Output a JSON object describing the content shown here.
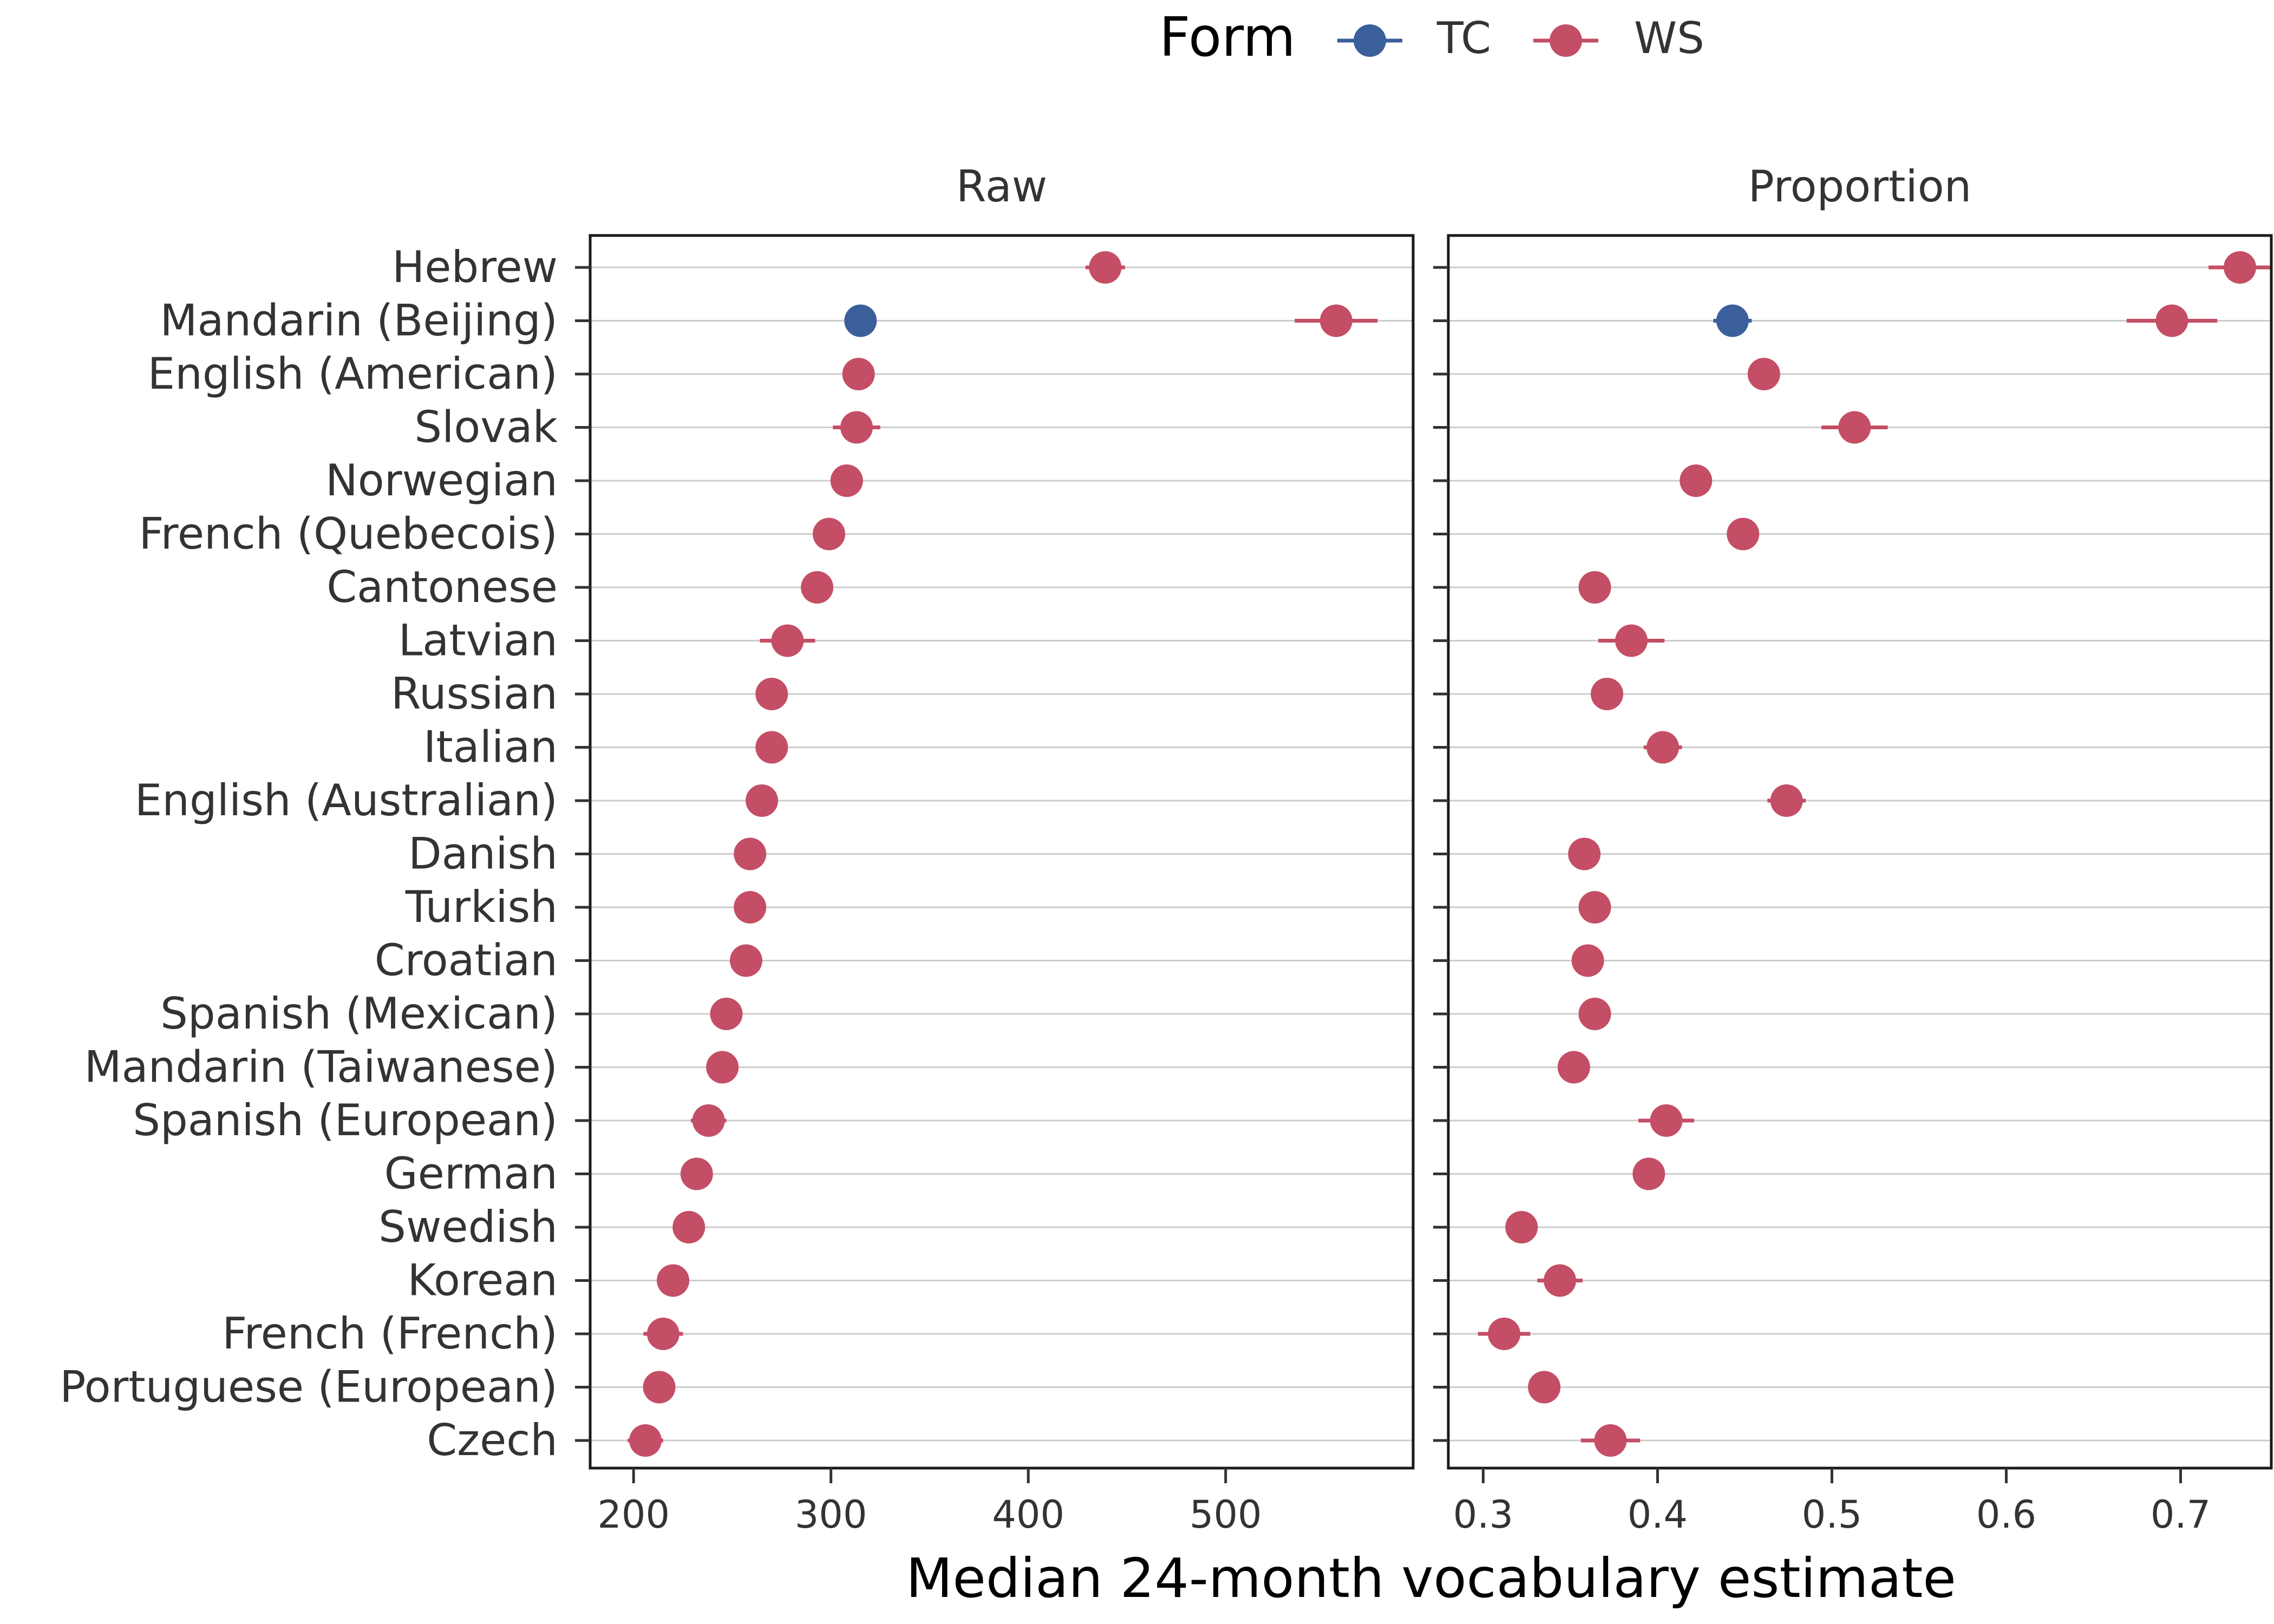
{
  "chart_data": {
    "type": "scatter",
    "subtype": "dot plot with error bars, faceted",
    "xlabel": "Median 24-month vocabulary estimate",
    "ylabel": "",
    "legend": {
      "title": "Form",
      "placement": "top-center",
      "entries": [
        {
          "key": "TC",
          "label": "TC",
          "color": "#3a5f9a"
        },
        {
          "key": "WS",
          "label": "WS",
          "color": "#c44e65"
        }
      ]
    },
    "categories": [
      "Hebrew",
      "Mandarin (Beijing)",
      "English (American)",
      "Slovak",
      "Norwegian",
      "French (Quebecois)",
      "Cantonese",
      "Latvian",
      "Russian",
      "Italian",
      "English (Australian)",
      "Danish",
      "Turkish",
      "Croatian",
      "Spanish (Mexican)",
      "Mandarin (Taiwanese)",
      "Spanish (European)",
      "German",
      "Swedish",
      "Korean",
      "French (French)",
      "Portuguese (European)",
      "Czech"
    ],
    "grid": {
      "horizontal": true,
      "vertical": false
    },
    "facets": [
      {
        "title": "Raw",
        "xlim": [
          178,
          595
        ],
        "xticks": [
          200,
          300,
          400,
          500
        ],
        "xtick_labels": [
          "200",
          "300",
          "400",
          "500"
        ],
        "points": [
          {
            "category": "Hebrew",
            "form": "WS",
            "value": 439,
            "lo": 429,
            "hi": 449
          },
          {
            "category": "Mandarin (Beijing)",
            "form": "WS",
            "value": 556,
            "lo": 535,
            "hi": 577
          },
          {
            "category": "Mandarin (Beijing)",
            "form": "TC",
            "value": 315,
            "lo": 310,
            "hi": 320
          },
          {
            "category": "English (American)",
            "form": "WS",
            "value": 314,
            "lo": 311,
            "hi": 317
          },
          {
            "category": "Slovak",
            "form": "WS",
            "value": 313,
            "lo": 301,
            "hi": 325
          },
          {
            "category": "Norwegian",
            "form": "WS",
            "value": 308,
            "lo": 305,
            "hi": 311
          },
          {
            "category": "French (Quebecois)",
            "form": "WS",
            "value": 299,
            "lo": 295,
            "hi": 303
          },
          {
            "category": "Cantonese",
            "form": "WS",
            "value": 293,
            "lo": 289,
            "hi": 297
          },
          {
            "category": "Latvian",
            "form": "WS",
            "value": 278,
            "lo": 264,
            "hi": 292
          },
          {
            "category": "Russian",
            "form": "WS",
            "value": 270,
            "lo": 266,
            "hi": 274
          },
          {
            "category": "Italian",
            "form": "WS",
            "value": 270,
            "lo": 266,
            "hi": 274
          },
          {
            "category": "English (Australian)",
            "form": "WS",
            "value": 265,
            "lo": 262,
            "hi": 268
          },
          {
            "category": "Danish",
            "form": "WS",
            "value": 259,
            "lo": 256,
            "hi": 262
          },
          {
            "category": "Turkish",
            "form": "WS",
            "value": 259,
            "lo": 255,
            "hi": 263
          },
          {
            "category": "Croatian",
            "form": "WS",
            "value": 257,
            "lo": 254,
            "hi": 260
          },
          {
            "category": "Spanish (Mexican)",
            "form": "WS",
            "value": 247,
            "lo": 244,
            "hi": 250
          },
          {
            "category": "Mandarin (Taiwanese)",
            "form": "WS",
            "value": 245,
            "lo": 242,
            "hi": 248
          },
          {
            "category": "Spanish (European)",
            "form": "WS",
            "value": 238,
            "lo": 229,
            "hi": 247
          },
          {
            "category": "German",
            "form": "WS",
            "value": 232,
            "lo": 229,
            "hi": 235
          },
          {
            "category": "Swedish",
            "form": "WS",
            "value": 228,
            "lo": 225,
            "hi": 231
          },
          {
            "category": "Korean",
            "form": "WS",
            "value": 220,
            "lo": 213,
            "hi": 227
          },
          {
            "category": "French (French)",
            "form": "WS",
            "value": 215,
            "lo": 205,
            "hi": 225
          },
          {
            "category": "Portuguese (European)",
            "form": "WS",
            "value": 213,
            "lo": 210,
            "hi": 216
          },
          {
            "category": "Czech",
            "form": "WS",
            "value": 206,
            "lo": 197,
            "hi": 215
          }
        ]
      },
      {
        "title": "Proportion",
        "xlim": [
          0.28,
          0.752
        ],
        "xticks": [
          0.3,
          0.4,
          0.5,
          0.6,
          0.7
        ],
        "xtick_labels": [
          "0.3",
          "0.4",
          "0.5",
          "0.6",
          "0.7"
        ],
        "points": [
          {
            "category": "Hebrew",
            "form": "WS",
            "value": 0.734,
            "lo": 0.716,
            "hi": 0.752
          },
          {
            "category": "Mandarin (Beijing)",
            "form": "WS",
            "value": 0.695,
            "lo": 0.669,
            "hi": 0.721
          },
          {
            "category": "Mandarin (Beijing)",
            "form": "TC",
            "value": 0.443,
            "lo": 0.432,
            "hi": 0.454
          },
          {
            "category": "English (American)",
            "form": "WS",
            "value": 0.461,
            "lo": 0.455,
            "hi": 0.467
          },
          {
            "category": "Slovak",
            "form": "WS",
            "value": 0.513,
            "lo": 0.494,
            "hi": 0.532
          },
          {
            "category": "Norwegian",
            "form": "WS",
            "value": 0.422,
            "lo": 0.418,
            "hi": 0.426
          },
          {
            "category": "French (Quebecois)",
            "form": "WS",
            "value": 0.449,
            "lo": 0.445,
            "hi": 0.453
          },
          {
            "category": "Cantonese",
            "form": "WS",
            "value": 0.364,
            "lo": 0.36,
            "hi": 0.368
          },
          {
            "category": "Latvian",
            "form": "WS",
            "value": 0.385,
            "lo": 0.366,
            "hi": 0.404
          },
          {
            "category": "Russian",
            "form": "WS",
            "value": 0.371,
            "lo": 0.367,
            "hi": 0.375
          },
          {
            "category": "Italian",
            "form": "WS",
            "value": 0.403,
            "lo": 0.392,
            "hi": 0.414
          },
          {
            "category": "English (Australian)",
            "form": "WS",
            "value": 0.474,
            "lo": 0.463,
            "hi": 0.485
          },
          {
            "category": "Danish",
            "form": "WS",
            "value": 0.358,
            "lo": 0.354,
            "hi": 0.362
          },
          {
            "category": "Turkish",
            "form": "WS",
            "value": 0.364,
            "lo": 0.355,
            "hi": 0.373
          },
          {
            "category": "Croatian",
            "form": "WS",
            "value": 0.36,
            "lo": 0.356,
            "hi": 0.364
          },
          {
            "category": "Spanish (Mexican)",
            "form": "WS",
            "value": 0.364,
            "lo": 0.355,
            "hi": 0.373
          },
          {
            "category": "Mandarin (Taiwanese)",
            "form": "WS",
            "value": 0.352,
            "lo": 0.348,
            "hi": 0.356
          },
          {
            "category": "Spanish (European)",
            "form": "WS",
            "value": 0.405,
            "lo": 0.389,
            "hi": 0.421
          },
          {
            "category": "German",
            "form": "WS",
            "value": 0.395,
            "lo": 0.391,
            "hi": 0.399
          },
          {
            "category": "Swedish",
            "form": "WS",
            "value": 0.322,
            "lo": 0.318,
            "hi": 0.326
          },
          {
            "category": "Korean",
            "form": "WS",
            "value": 0.344,
            "lo": 0.331,
            "hi": 0.357
          },
          {
            "category": "French (French)",
            "form": "WS",
            "value": 0.312,
            "lo": 0.297,
            "hi": 0.327
          },
          {
            "category": "Portuguese (European)",
            "form": "WS",
            "value": 0.335,
            "lo": 0.331,
            "hi": 0.339
          },
          {
            "category": "Czech",
            "form": "WS",
            "value": 0.373,
            "lo": 0.356,
            "hi": 0.39
          }
        ]
      }
    ]
  }
}
